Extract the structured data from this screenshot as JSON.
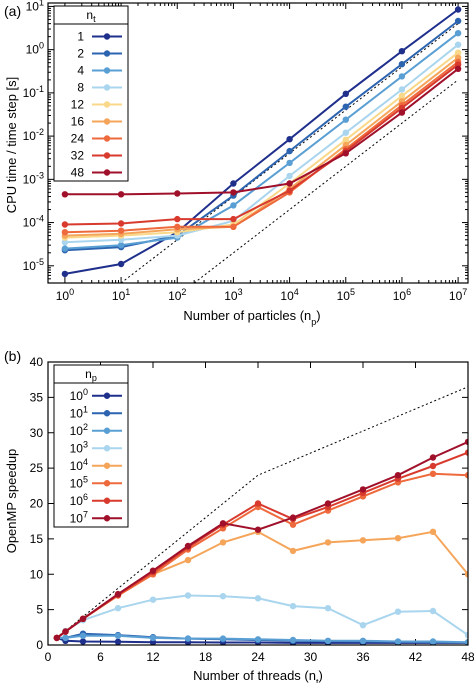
{
  "chart_data": [
    {
      "panel_label": "(a)",
      "type": "line",
      "xlabel": "Number of particles (n",
      "xlabel_sub": "p",
      "xlabel_end": ")",
      "ylabel": "CPU time / time step [s]",
      "x_scale": "log",
      "y_scale": "log",
      "xlim": [
        0.5,
        15000000
      ],
      "ylim": [
        4e-06,
        12
      ],
      "x_ticks": [
        {
          "value": 1,
          "base": "10",
          "exp": "0"
        },
        {
          "value": 10,
          "base": "10",
          "exp": "1"
        },
        {
          "value": 100,
          "base": "10",
          "exp": "2"
        },
        {
          "value": 1000,
          "base": "10",
          "exp": "3"
        },
        {
          "value": 10000,
          "base": "10",
          "exp": "4"
        },
        {
          "value": 100000,
          "base": "10",
          "exp": "5"
        },
        {
          "value": 1000000,
          "base": "10",
          "exp": "6"
        },
        {
          "value": 10000000,
          "base": "10",
          "exp": "7"
        }
      ],
      "y_ticks": [
        {
          "value": 1e-05,
          "base": "10",
          "exp": "-5"
        },
        {
          "value": 0.0001,
          "base": "10",
          "exp": "-4"
        },
        {
          "value": 0.001,
          "base": "10",
          "exp": "-3"
        },
        {
          "value": 0.01,
          "base": "10",
          "exp": "-2"
        },
        {
          "value": 0.1,
          "base": "10",
          "exp": "-1"
        },
        {
          "value": 1,
          "base": "10",
          "exp": "0"
        },
        {
          "value": 10,
          "base": "10",
          "exp": "1"
        }
      ],
      "legend_title": "n",
      "legend_title_sub": "t",
      "legend_position": "top-left",
      "x": [
        1,
        10,
        100,
        1000,
        10000,
        100000,
        1000000,
        10000000
      ],
      "series": [
        {
          "name": "1",
          "color": "#1f2f8c",
          "values": [
            6.5e-06,
            1.1e-05,
            6e-05,
            0.0008,
            0.0085,
            0.095,
            0.92,
            8.5
          ]
        },
        {
          "name": "2",
          "color": "#2c64b0",
          "values": [
            2.3e-05,
            2.7e-05,
            5e-05,
            0.00042,
            0.0045,
            0.048,
            0.46,
            4.6
          ]
        },
        {
          "name": "4",
          "color": "#5a9fd4",
          "values": [
            2.5e-05,
            3e-05,
            4.5e-05,
            0.00025,
            0.0024,
            0.024,
            0.24,
            2.4
          ]
        },
        {
          "name": "8",
          "color": "#a9d5ee",
          "values": [
            3.5e-05,
            4e-05,
            5e-05,
            0.00011,
            0.0012,
            0.012,
            0.12,
            1.3
          ]
        },
        {
          "name": "12",
          "color": "#fad889",
          "values": [
            4.5e-05,
            5e-05,
            6e-05,
            9e-05,
            0.0008,
            0.0082,
            0.085,
            0.85
          ]
        },
        {
          "name": "16",
          "color": "#f5a55a",
          "values": [
            5e-05,
            5.5e-05,
            7e-05,
            8e-05,
            0.0006,
            0.0062,
            0.064,
            0.65
          ]
        },
        {
          "name": "24",
          "color": "#ee6a3c",
          "values": [
            6e-05,
            6.5e-05,
            8e-05,
            8e-05,
            0.0005,
            0.005,
            0.052,
            0.52
          ]
        },
        {
          "name": "32",
          "color": "#d83a2d",
          "values": [
            9e-05,
            9.5e-05,
            0.00012,
            0.00012,
            0.00055,
            0.0045,
            0.045,
            0.45
          ]
        },
        {
          "name": "48",
          "color": "#a0102a",
          "values": [
            0.00045,
            0.00045,
            0.00047,
            0.0005,
            0.0008,
            0.004,
            0.035,
            0.36
          ]
        }
      ],
      "reference_lines": [
        {
          "style": "dotted",
          "x": [
            10,
            10000000
          ],
          "y": [
            4e-06,
            4
          ]
        },
        {
          "style": "dotted",
          "x": [
            200,
            10000000
          ],
          "y": [
            4e-06,
            0.2
          ]
        }
      ]
    },
    {
      "panel_label": "(b)",
      "type": "line",
      "xlabel": "Number of threads (n",
      "xlabel_sub": "t",
      "xlabel_end": ")",
      "ylabel": "OpenMP speedup",
      "xlim": [
        0,
        48
      ],
      "ylim": [
        0,
        40
      ],
      "x_ticks": [
        0,
        6,
        12,
        18,
        24,
        30,
        36,
        42,
        48
      ],
      "y_ticks": [
        0,
        5,
        10,
        15,
        20,
        25,
        30,
        35,
        40
      ],
      "legend_title": "n",
      "legend_title_sub": "p",
      "legend_position": "top-left",
      "x": [
        1,
        2,
        4,
        8,
        12,
        16,
        20,
        24,
        28,
        32,
        36,
        40,
        44,
        48
      ],
      "series": [
        {
          "name_base": "10",
          "name_exp": "0",
          "color": "#1f2f8c",
          "values": [
            1,
            0.6,
            0.5,
            0.45,
            0.4,
            0.4,
            0.35,
            0.35,
            0.3,
            0.3,
            0.3,
            0.3,
            0.3,
            0.3
          ]
        },
        {
          "name_base": "10",
          "name_exp": "1",
          "color": "#2c64b0",
          "values": [
            1,
            1.0,
            1.6,
            1.4,
            1.1,
            0.9,
            0.8,
            0.7,
            0.6,
            0.55,
            0.5,
            0.45,
            0.4,
            0.35
          ]
        },
        {
          "name_base": "10",
          "name_exp": "2",
          "color": "#5a9fd4",
          "values": [
            1,
            1.0,
            1.3,
            1.3,
            1.0,
            0.9,
            0.9,
            0.8,
            0.7,
            0.6,
            0.6,
            0.5,
            0.5,
            0.4
          ]
        },
        {
          "name_base": "10",
          "name_exp": "3",
          "color": "#a9d5ee",
          "values": [
            1,
            2.0,
            3.5,
            5.2,
            6.4,
            7.0,
            6.9,
            6.6,
            5.5,
            5.2,
            2.8,
            4.7,
            4.8,
            1.4
          ]
        },
        {
          "name_base": "10",
          "name_exp": "4",
          "color": "#f5a55a",
          "values": [
            1,
            1.9,
            3.7,
            7.0,
            10.0,
            12.0,
            14.5,
            16.0,
            13.3,
            14.5,
            14.8,
            15.1,
            16.0,
            10.0
          ]
        },
        {
          "name_base": "10",
          "name_exp": "5",
          "color": "#ee6a3c",
          "values": [
            1,
            1.9,
            3.7,
            7.0,
            10.0,
            13.5,
            16.5,
            19.5,
            17.0,
            19.0,
            21.0,
            23.0,
            24.2,
            24.0
          ]
        },
        {
          "name_base": "10",
          "name_exp": "6",
          "color": "#d83a2d",
          "values": [
            1,
            1.9,
            3.7,
            7.1,
            10.3,
            13.8,
            17.0,
            20.0,
            17.8,
            19.5,
            21.5,
            23.5,
            25.3,
            27.2
          ]
        },
        {
          "name_base": "10",
          "name_exp": "7",
          "color": "#a0102a",
          "values": [
            1,
            1.9,
            3.7,
            7.2,
            10.5,
            14.0,
            17.2,
            16.3,
            18.0,
            20.0,
            22.0,
            24.0,
            26.5,
            28.7
          ]
        }
      ],
      "reference_lines": [
        {
          "style": "dotted",
          "x": [
            1,
            24,
            48
          ],
          "y": [
            1,
            24,
            36.5
          ]
        }
      ]
    }
  ]
}
